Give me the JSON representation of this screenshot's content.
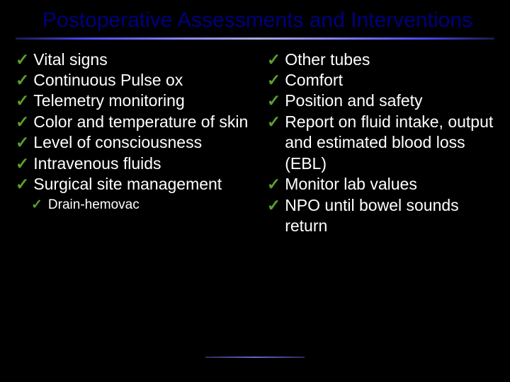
{
  "title": "Postoperative Assessments and Interventions",
  "checkmark": "✓",
  "colors": {
    "background": "#000000",
    "title_color": "#000080",
    "text_color": "#ffffff",
    "check_color": "#5aa02c"
  },
  "typography": {
    "title_fontsize": 30,
    "bullet_fontsize": 23,
    "sub_fontsize": 19
  },
  "left_bullets": [
    "Vital signs",
    "Continuous Pulse ox",
    "Telemetry monitoring",
    "Color and temperature of skin",
    "Level of consciousness",
    "Intravenous fluids",
    "Surgical site management"
  ],
  "left_sub": "Drain-hemovac",
  "right_bullets": [
    "Other tubes",
    "Comfort",
    "Position and safety",
    "Report on fluid intake, output and estimated blood loss (EBL)",
    "Monitor lab values",
    "NPO until bowel sounds return"
  ]
}
